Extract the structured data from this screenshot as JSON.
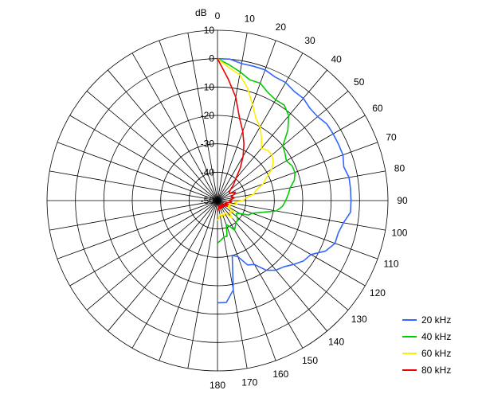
{
  "chart_data": {
    "type": "polar-line",
    "title": "",
    "unit_label": "dB",
    "radial_axis": {
      "range": [
        -50,
        10
      ],
      "ticks": [
        10,
        0,
        -10,
        -20,
        -30,
        -40,
        -50
      ],
      "tick_labels": [
        "10",
        "0",
        "-10",
        "-20",
        "-30",
        "-40",
        "-50"
      ]
    },
    "angular_axis": {
      "range": [
        0,
        180
      ],
      "labeled_ticks": [
        0,
        10,
        20,
        30,
        40,
        50,
        60,
        70,
        80,
        90,
        100,
        110,
        120,
        130,
        140,
        150,
        160,
        170,
        180
      ],
      "tick_labels": [
        "0",
        "10",
        "20",
        "30",
        "40",
        "50",
        "60",
        "70",
        "80",
        "90",
        "100",
        "110",
        "120",
        "130",
        "140",
        "150",
        "160",
        "170",
        "180"
      ],
      "spoke_step_deg": 10
    },
    "grid": true,
    "legend_position": "bottom-right",
    "series": [
      {
        "name": "20 kHz",
        "color": "#3366ff",
        "points": [
          [
            0,
            0
          ],
          [
            5,
            0
          ],
          [
            10,
            -1
          ],
          [
            15,
            -1
          ],
          [
            20,
            -1
          ],
          [
            25,
            -2
          ],
          [
            30,
            -2
          ],
          [
            35,
            -3
          ],
          [
            40,
            -3
          ],
          [
            45,
            -4
          ],
          [
            50,
            -4
          ],
          [
            55,
            -3
          ],
          [
            60,
            -3
          ],
          [
            65,
            -3
          ],
          [
            70,
            -3
          ],
          [
            75,
            -4
          ],
          [
            80,
            -3
          ],
          [
            85,
            -3
          ],
          [
            90,
            -3
          ],
          [
            95,
            -3
          ],
          [
            100,
            -5
          ],
          [
            105,
            -6
          ],
          [
            110,
            -6
          ],
          [
            115,
            -8
          ],
          [
            120,
            -12
          ],
          [
            125,
            -13
          ],
          [
            130,
            -15
          ],
          [
            135,
            -17
          ],
          [
            140,
            -18
          ],
          [
            145,
            -20
          ],
          [
            150,
            -24
          ],
          [
            155,
            -25
          ],
          [
            160,
            -29
          ],
          [
            165,
            -30
          ],
          [
            170,
            -18
          ],
          [
            175,
            -14
          ],
          [
            180,
            -14
          ]
        ]
      },
      {
        "name": "40 kHz",
        "color": "#00cc00",
        "points": [
          [
            0,
            0
          ],
          [
            5,
            -2
          ],
          [
            10,
            -4
          ],
          [
            15,
            -6
          ],
          [
            20,
            -6
          ],
          [
            25,
            -8
          ],
          [
            30,
            -9
          ],
          [
            35,
            -9
          ],
          [
            40,
            -11
          ],
          [
            45,
            -15
          ],
          [
            50,
            -20
          ],
          [
            55,
            -21
          ],
          [
            60,
            -22
          ],
          [
            65,
            -21
          ],
          [
            70,
            -21
          ],
          [
            75,
            -22
          ],
          [
            80,
            -24
          ],
          [
            85,
            -25
          ],
          [
            90,
            -26
          ],
          [
            95,
            -27
          ],
          [
            100,
            -29
          ],
          [
            105,
            -34
          ],
          [
            110,
            -37
          ],
          [
            115,
            -38
          ],
          [
            120,
            -41
          ],
          [
            125,
            -42
          ],
          [
            130,
            -41
          ],
          [
            135,
            -40
          ],
          [
            140,
            -40
          ],
          [
            145,
            -39
          ],
          [
            150,
            -38
          ],
          [
            155,
            -40
          ],
          [
            160,
            -41
          ],
          [
            165,
            -37
          ],
          [
            170,
            -37
          ],
          [
            175,
            -36
          ],
          [
            180,
            -35
          ]
        ]
      },
      {
        "name": "60 kHz",
        "color": "#ffee00",
        "points": [
          [
            0,
            0
          ],
          [
            5,
            -3
          ],
          [
            10,
            -5
          ],
          [
            15,
            -9
          ],
          [
            20,
            -14
          ],
          [
            25,
            -18
          ],
          [
            30,
            -20
          ],
          [
            35,
            -23
          ],
          [
            40,
            -26
          ],
          [
            45,
            -25
          ],
          [
            50,
            -25
          ],
          [
            55,
            -26
          ],
          [
            60,
            -28
          ],
          [
            65,
            -31
          ],
          [
            70,
            -33
          ],
          [
            75,
            -36
          ],
          [
            80,
            -37
          ],
          [
            85,
            -40
          ],
          [
            90,
            -41
          ],
          [
            95,
            -44
          ],
          [
            100,
            -43
          ],
          [
            105,
            -44
          ],
          [
            110,
            -46
          ],
          [
            115,
            -45
          ],
          [
            120,
            -46
          ],
          [
            125,
            -43
          ],
          [
            130,
            -44
          ],
          [
            135,
            -44
          ],
          [
            140,
            -42
          ],
          [
            145,
            -44
          ],
          [
            150,
            -45
          ],
          [
            155,
            -44
          ],
          [
            160,
            -45
          ],
          [
            165,
            -44
          ],
          [
            170,
            -45
          ],
          [
            175,
            -44
          ],
          [
            180,
            -43
          ]
        ]
      },
      {
        "name": "80 kHz",
        "color": "#ee0000",
        "points": [
          [
            0,
            0
          ],
          [
            5,
            -7
          ],
          [
            10,
            -13
          ],
          [
            15,
            -20
          ],
          [
            20,
            -24
          ],
          [
            25,
            -28
          ],
          [
            30,
            -32
          ],
          [
            35,
            -36
          ],
          [
            40,
            -40
          ],
          [
            45,
            -42
          ],
          [
            50,
            -44
          ],
          [
            55,
            -45
          ],
          [
            60,
            -45
          ],
          [
            65,
            -43
          ],
          [
            70,
            -44
          ],
          [
            75,
            -45
          ],
          [
            80,
            -44
          ],
          [
            85,
            -45
          ],
          [
            90,
            -46
          ],
          [
            95,
            -45
          ],
          [
            100,
            -46
          ],
          [
            105,
            -47
          ],
          [
            110,
            -46
          ],
          [
            115,
            -47
          ],
          [
            120,
            -46
          ],
          [
            125,
            -47
          ],
          [
            130,
            -48
          ],
          [
            135,
            -47
          ],
          [
            140,
            -48
          ],
          [
            145,
            -47
          ],
          [
            150,
            -48
          ],
          [
            155,
            -47
          ],
          [
            160,
            -47
          ],
          [
            165,
            -48
          ],
          [
            170,
            -47
          ],
          [
            175,
            -47
          ],
          [
            180,
            -46
          ]
        ]
      }
    ]
  }
}
